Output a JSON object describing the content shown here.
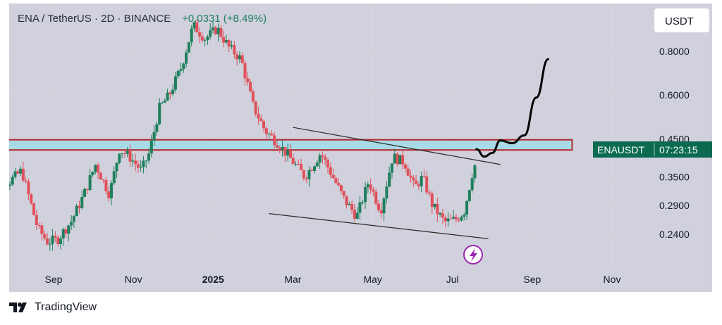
{
  "header": {
    "symbol_line": "ENA / TetherUS · 2D · BINANCE",
    "change": "+0.0331 (+8.49%)"
  },
  "currency_button": "USDT",
  "price_tag": {
    "symbol": "ENAUSDT",
    "countdown": "07:23:15"
  },
  "footer": {
    "brand": "TradingView"
  },
  "colors": {
    "up": "#1e7f5c",
    "down": "#e0505a",
    "zone_fill": "#a8dbe6",
    "zone_border": "#b3262c",
    "grid": "#d5d5dc",
    "background": "#d0d1dc",
    "price_tag": "#0b6b50",
    "trend": "#2a2a2a",
    "icon": "#9c27b0"
  },
  "chart_data": {
    "type": "candlestick",
    "scale": "log",
    "ylim": [
      0.2,
      1.0
    ],
    "y_ticks": [
      {
        "value": 0.8,
        "label": "0.8000"
      },
      {
        "value": 0.6,
        "label": "0.6000"
      },
      {
        "value": 0.45,
        "label": "0.4500"
      },
      {
        "value": 0.35,
        "label": "0.3500"
      },
      {
        "value": 0.29,
        "label": "0.2900"
      },
      {
        "value": 0.24,
        "label": "0.2400"
      }
    ],
    "x_labels": [
      {
        "label": "Sep",
        "month": 8,
        "bold": false
      },
      {
        "label": "Nov",
        "month": 10,
        "bold": false
      },
      {
        "label": "2025",
        "month": 12,
        "bold": true
      },
      {
        "label": "Mar",
        "month": 14,
        "bold": false
      },
      {
        "label": "May",
        "month": 16,
        "bold": false
      },
      {
        "label": "Jul",
        "month": 18,
        "bold": false
      },
      {
        "label": "Sep",
        "month": 20,
        "bold": false
      },
      {
        "label": "Nov",
        "month": 22,
        "bold": false
      }
    ],
    "resistance_zone": {
      "low": 0.418,
      "high": 0.447,
      "from_month": 6.3,
      "to_month": 21.0
    },
    "trendlines": [
      {
        "name": "upper",
        "from": [
          14.0,
          0.485
        ],
        "to": [
          19.2,
          0.38
        ]
      },
      {
        "name": "lower",
        "from": [
          13.4,
          0.275
        ],
        "to": [
          18.9,
          0.233
        ]
      }
    ],
    "projection_path": [
      [
        18.6,
        0.42
      ],
      [
        18.8,
        0.4
      ],
      [
        19.0,
        0.41
      ],
      [
        19.2,
        0.445
      ],
      [
        19.5,
        0.437
      ],
      [
        19.8,
        0.46
      ],
      [
        20.1,
        0.59
      ],
      [
        20.4,
        0.76
      ]
    ],
    "close_series": [
      [
        6.3,
        0.435
      ],
      [
        6.55,
        0.335
      ],
      [
        6.9,
        0.34
      ],
      [
        7.2,
        0.365
      ],
      [
        7.6,
        0.25
      ],
      [
        7.85,
        0.228
      ],
      [
        8.1,
        0.232
      ],
      [
        8.45,
        0.262
      ],
      [
        8.75,
        0.31
      ],
      [
        9.05,
        0.38
      ],
      [
        9.4,
        0.312
      ],
      [
        9.65,
        0.42
      ],
      [
        9.9,
        0.4
      ],
      [
        10.2,
        0.365
      ],
      [
        10.4,
        0.41
      ],
      [
        10.65,
        0.55
      ],
      [
        10.9,
        0.6
      ],
      [
        11.2,
        0.72
      ],
      [
        11.5,
        0.95
      ],
      [
        11.8,
        0.87
      ],
      [
        12.1,
        0.93
      ],
      [
        12.4,
        0.82
      ],
      [
        12.7,
        0.76
      ],
      [
        13.0,
        0.56
      ],
      [
        13.3,
        0.475
      ],
      [
        13.6,
        0.44
      ],
      [
        13.9,
        0.4
      ],
      [
        14.3,
        0.35
      ],
      [
        14.7,
        0.41
      ],
      [
        15.0,
        0.35
      ],
      [
        15.3,
        0.3
      ],
      [
        15.6,
        0.27
      ],
      [
        15.9,
        0.34
      ],
      [
        16.2,
        0.28
      ],
      [
        16.5,
        0.4
      ],
      [
        16.8,
        0.385
      ],
      [
        17.05,
        0.325
      ],
      [
        17.25,
        0.35
      ],
      [
        17.5,
        0.29
      ],
      [
        17.8,
        0.26
      ],
      [
        18.1,
        0.265
      ],
      [
        18.3,
        0.28
      ],
      [
        18.5,
        0.36
      ],
      [
        18.6,
        0.39
      ]
    ]
  }
}
